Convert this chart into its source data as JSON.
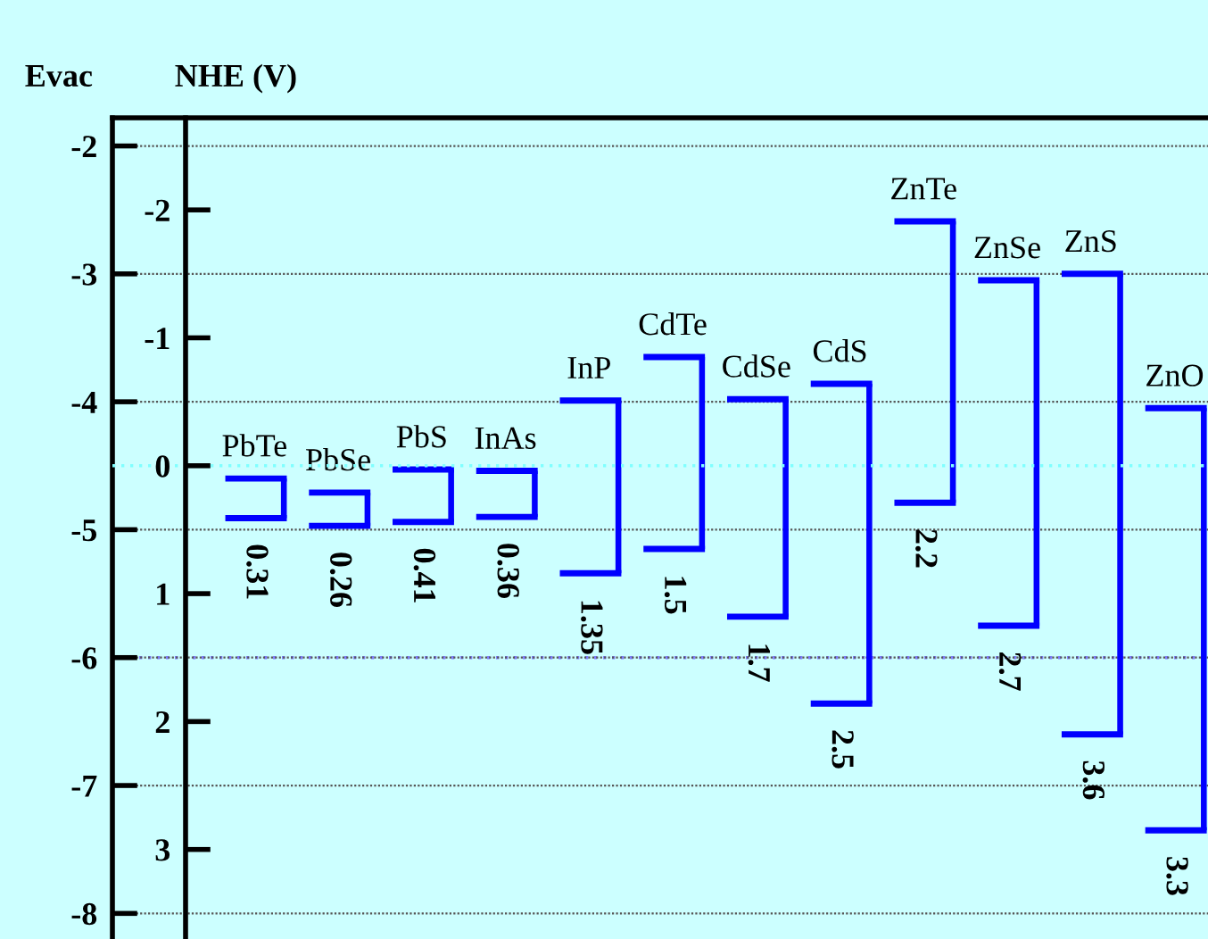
{
  "chart_data": {
    "type": "bar",
    "ylabel": "Evac",
    "y2label": "NHE (V)",
    "categories": [
      "PbTe",
      "PbSe",
      "PbS",
      "InAs",
      "InP",
      "CdTe",
      "CdSe",
      "CdS",
      "ZnTe",
      "ZnSe",
      "ZnS",
      "ZnO"
    ],
    "base": [
      -4.91,
      -4.97,
      -4.94,
      -4.9,
      -5.34,
      -5.15,
      -5.68,
      -6.36,
      -4.79,
      -5.75,
      -6.6,
      -7.35
    ],
    "values": [
      0.31,
      0.26,
      0.41,
      0.36,
      1.35,
      1.5,
      1.7,
      2.5,
      2.2,
      2.7,
      3.6,
      3.3
    ],
    "color": "#0000ff",
    "data_labels": true,
    "ylim": [
      -8.2,
      -1.78
    ],
    "yticks": [
      -2,
      -3,
      -4,
      -5,
      -6,
      -7,
      -8
    ],
    "y2lim": [
      3.7,
      -2.72
    ],
    "y2ticks": [
      -2,
      -1,
      0,
      1,
      2,
      3
    ],
    "ref_lines": [
      {
        "axis": "y",
        "value": -6,
        "color": "#8080ff",
        "line_style": "dotted"
      },
      {
        "axis": "y2",
        "value": 0,
        "color": "#80ffff",
        "line_style": "dotted"
      }
    ],
    "grid": "y",
    "tick_labels": "y",
    "legend": false
  }
}
